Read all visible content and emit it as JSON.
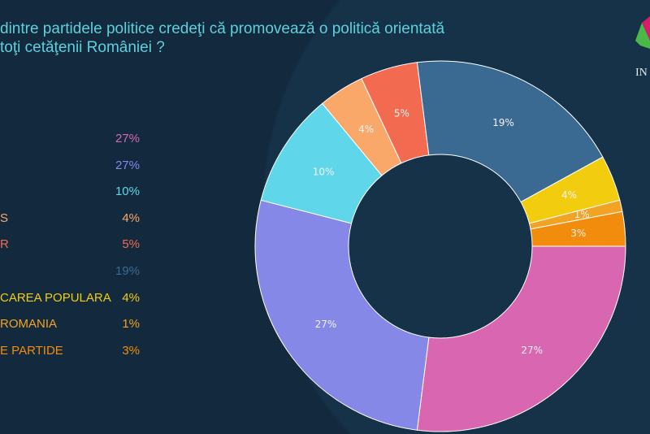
{
  "title_lines": [
    "dintre partidele politice credeţi că promovează o politică orientată",
    "toţi cetăţenii României ?"
  ],
  "logo_text": "IN",
  "chart_data": {
    "type": "pie",
    "donut": true,
    "title": "dintre partidele politice credeţi că promovează o politică orientată toţi cetăţenii României ?",
    "categories": [
      "",
      "",
      "",
      "S",
      "R",
      "",
      "CAREA POPULARA",
      "ROMANIA",
      "E PARTIDE"
    ],
    "values": [
      27,
      27,
      10,
      4,
      5,
      19,
      4,
      1,
      3
    ],
    "labels": [
      "27%",
      "27%",
      "10%",
      "4%",
      "5%",
      "19%",
      "4%",
      "1%",
      "3%"
    ],
    "colors": [
      "#d966b0",
      "#8588e6",
      "#5fd6ea",
      "#f9a86a",
      "#f26b50",
      "#3a6a92",
      "#f2cd0f",
      "#f2a324",
      "#f28c0c"
    ],
    "legend_placement": "left"
  }
}
